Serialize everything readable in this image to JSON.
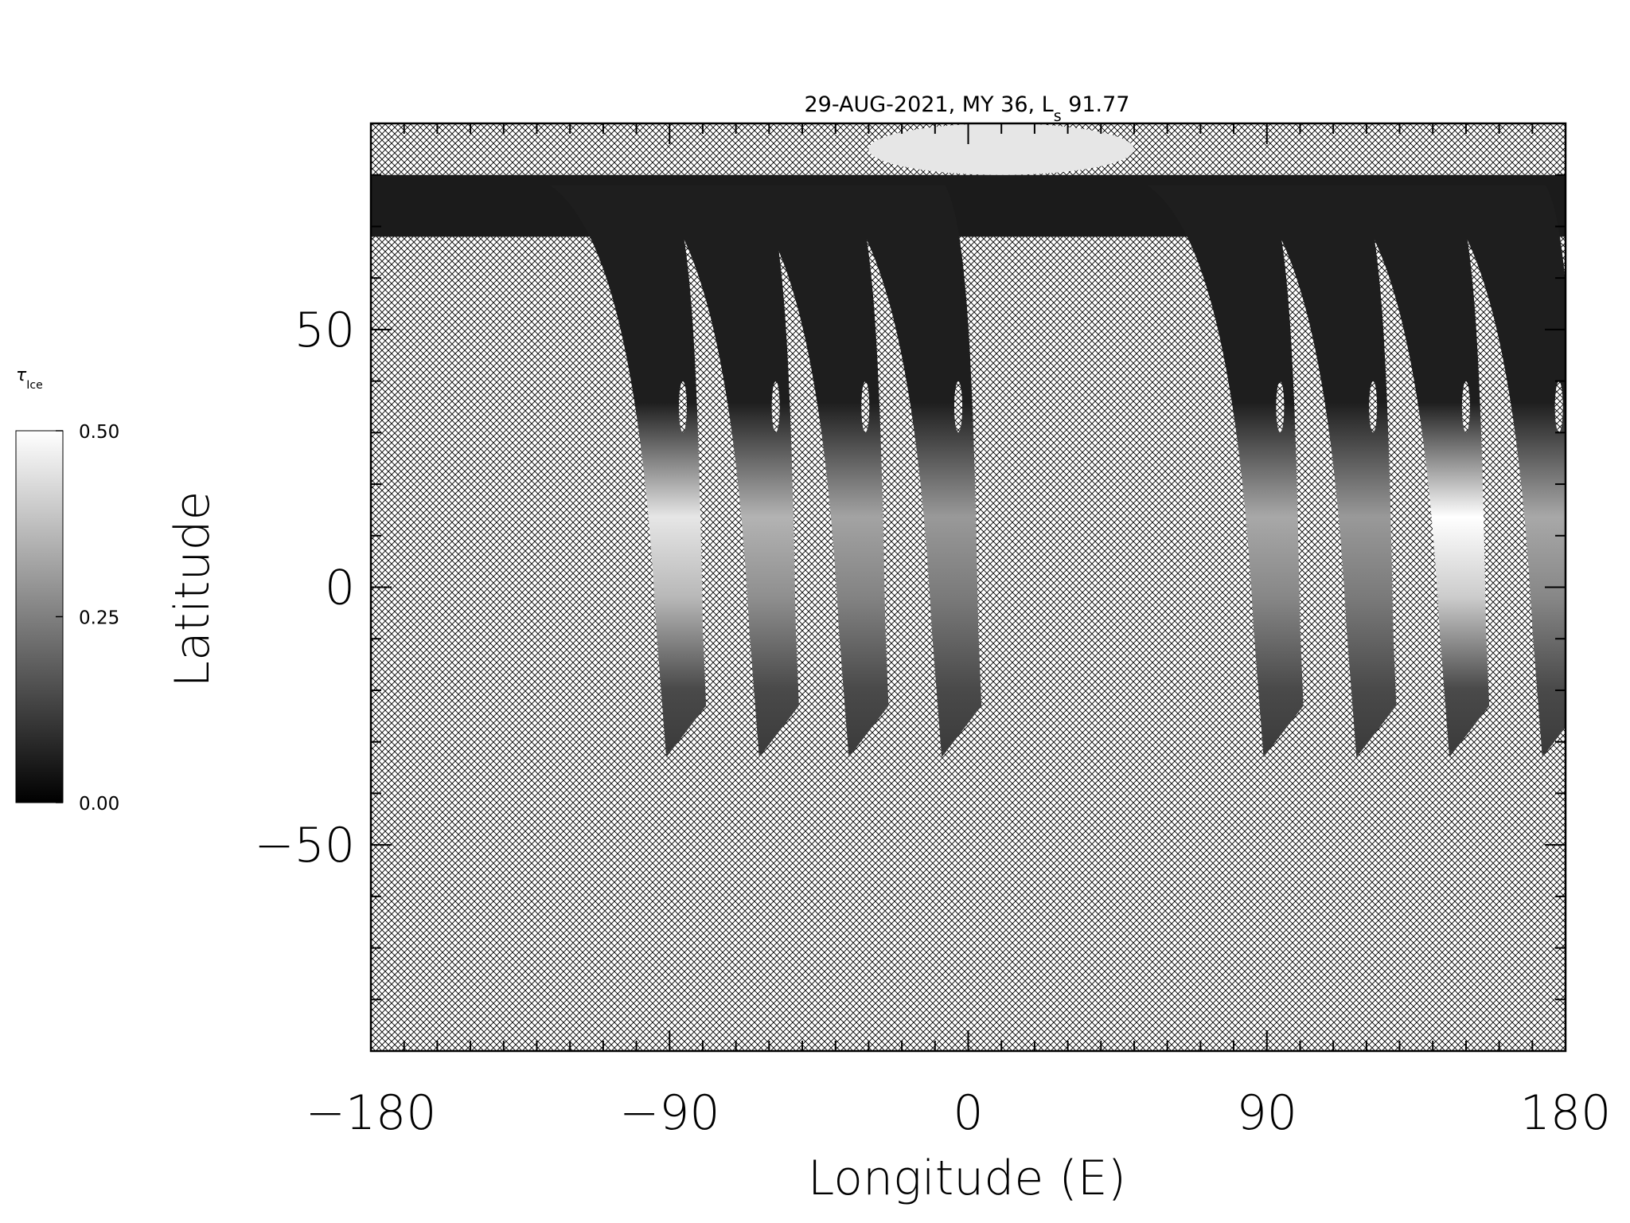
{
  "chart_data": {
    "type": "heatmap",
    "title": "29-AUG-2021, MY 36,  L",
    "title_subscript": "s",
    "title_suffix": " 91.77",
    "xlabel": "Longitude (E)",
    "ylabel": "Latitude",
    "xlim": [
      -180,
      180
    ],
    "ylim": [
      -90,
      90
    ],
    "x_ticks": [
      -180,
      -90,
      0,
      90,
      180
    ],
    "x_tick_labels": [
      "−180",
      "−90",
      "0",
      "90",
      "180"
    ],
    "y_ticks": [
      -50,
      0,
      50
    ],
    "y_tick_labels": [
      "−50",
      "0",
      "50"
    ],
    "colorbar": {
      "label": "τ",
      "label_subscript": "Ice",
      "min": 0.0,
      "max": 0.5,
      "tick_values": [
        0.5,
        0.25,
        0.0
      ],
      "tick_labels": [
        "0.50",
        "0.25",
        "0.00"
      ],
      "colormap": "grayscale"
    },
    "no_data_pattern": "crosshatch",
    "grid": false,
    "swaths": [
      {
        "center_lon": -88,
        "south_lat": -33,
        "peak_tau": 0.45
      },
      {
        "center_lon": -60,
        "south_lat": -33,
        "peak_tau": 0.35
      },
      {
        "center_lon": -33,
        "south_lat": -33,
        "peak_tau": 0.32
      },
      {
        "center_lon": -5,
        "south_lat": -33,
        "peak_tau": 0.3
      },
      {
        "center_lon": 92,
        "south_lat": -33,
        "peak_tau": 0.33
      },
      {
        "center_lon": 120,
        "south_lat": -33,
        "peak_tau": 0.3
      },
      {
        "center_lon": 148,
        "south_lat": -33,
        "peak_tau": 0.5
      },
      {
        "center_lon": 176,
        "south_lat": -33,
        "peak_tau": 0.33
      }
    ],
    "north_cap_tau": 0.45
  },
  "colors": {
    "background": "#ffffff",
    "axis": "#000000",
    "hatch": "#000000",
    "swath_dark": "#1e1e1e"
  }
}
